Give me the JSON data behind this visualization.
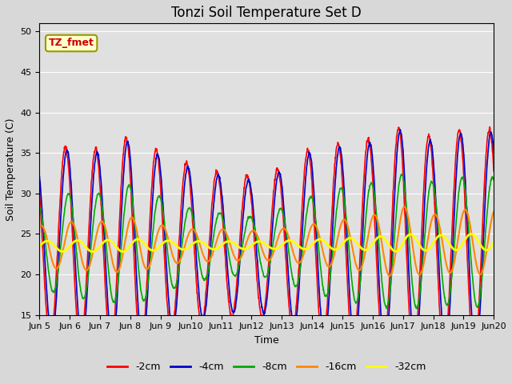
{
  "title": "Tonzi Soil Temperature Set D",
  "xlabel": "Time",
  "ylabel": "Soil Temperature (C)",
  "ylim": [
    15,
    51
  ],
  "yticks": [
    15,
    20,
    25,
    30,
    35,
    40,
    45,
    50
  ],
  "annotation_text": "TZ_fmet",
  "annotation_color": "#cc0000",
  "annotation_bg": "#ffffcc",
  "annotation_border": "#999900",
  "fig_color": "#d8d8d8",
  "plot_bg": "#e0e0e0",
  "series_colors": [
    "#ff0000",
    "#0000cc",
    "#00aa00",
    "#ff8800",
    "#ffff00"
  ],
  "series_labels": [
    "-2cm",
    "-4cm",
    "-8cm",
    "-16cm",
    "-32cm"
  ],
  "series_linewidths": [
    1.2,
    1.2,
    1.2,
    1.5,
    2.0
  ],
  "n_days": 15,
  "start_day": 5,
  "points_per_day": 96,
  "base_temp": 23.5,
  "amp_2cm": [
    11.0,
    12.5,
    12.0,
    13.5,
    11.5,
    10.0,
    9.0,
    8.5,
    9.5,
    12.0,
    12.5,
    13.0,
    14.5,
    13.0,
    14.0
  ],
  "amp_4cm": [
    10.5,
    12.0,
    11.5,
    13.0,
    11.0,
    9.5,
    8.5,
    8.0,
    9.0,
    11.5,
    12.0,
    12.5,
    14.0,
    12.5,
    13.5
  ],
  "amp_8cm": [
    5.0,
    6.5,
    6.5,
    7.5,
    6.0,
    4.5,
    4.0,
    3.5,
    4.5,
    6.0,
    7.0,
    7.5,
    8.5,
    7.5,
    8.0
  ],
  "amp_16cm": [
    2.5,
    3.0,
    3.0,
    3.5,
    2.5,
    2.0,
    2.0,
    1.8,
    2.0,
    2.5,
    3.0,
    3.5,
    4.5,
    3.5,
    4.0
  ],
  "amp_32cm": [
    0.6,
    0.7,
    0.7,
    0.8,
    0.6,
    0.5,
    0.5,
    0.45,
    0.5,
    0.6,
    0.7,
    0.8,
    1.1,
    0.9,
    1.0
  ],
  "trend_vals": [
    0.0,
    0.0,
    0.0,
    0.1,
    0.1,
    0.1,
    0.1,
    0.1,
    0.15,
    0.2,
    0.25,
    0.3,
    0.4,
    0.4,
    0.5
  ],
  "phase_shift_4cm": 0.05,
  "phase_shift_8cm": 0.1,
  "phase_shift_16cm": 0.2,
  "phase_shift_32cm": 0.4,
  "peak_hour": 14.5,
  "legend_ncol": 5,
  "tick_label_fontsize": 8,
  "title_fontsize": 12,
  "axis_fontsize": 9
}
